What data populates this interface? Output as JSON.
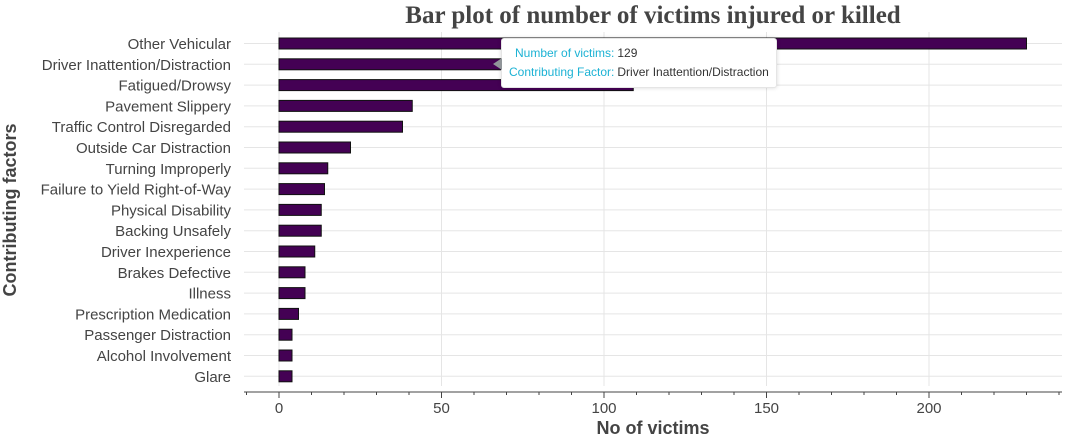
{
  "chart_data": {
    "type": "bar",
    "orientation": "horizontal",
    "title": "Bar plot of number of victims injured or killed",
    "xlabel": "No of victims",
    "ylabel": "Contributing factors",
    "xlim": [
      -10,
      240
    ],
    "xticks": [
      0,
      50,
      100,
      150,
      200
    ],
    "grid": true,
    "categories": [
      "Other Vehicular",
      "Driver Inattention/Distraction",
      "Fatigued/Drowsy",
      "Pavement Slippery",
      "Traffic Control Disregarded",
      "Outside Car Distraction",
      "Turning Improperly",
      "Failure to Yield Right-of-Way",
      "Physical Disability",
      "Backing Unsafely",
      "Driver Inexperience",
      "Brakes Defective",
      "Illness",
      "Prescription Medication",
      "Passenger Distraction",
      "Alcohol Involvement",
      "Glare"
    ],
    "values": [
      230,
      129,
      109,
      41,
      38,
      22,
      15,
      14,
      13,
      13,
      11,
      8,
      8,
      6,
      4,
      4,
      4
    ],
    "bar_color": "#440154",
    "tooltip": {
      "label_victims": "Number of victims:",
      "value_victims": "129",
      "label_factor": "Contributing Factor:",
      "value_factor": "Driver Inattention/Distraction"
    }
  }
}
